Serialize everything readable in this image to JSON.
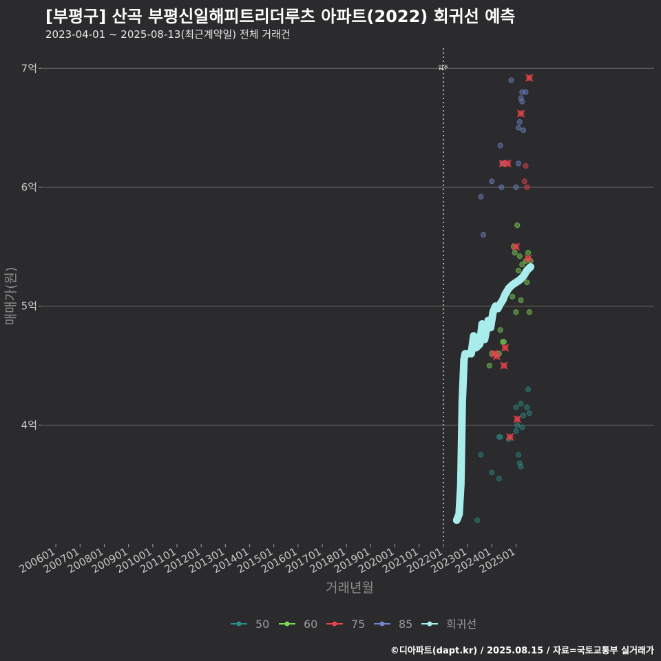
{
  "header": {
    "title": "[부평구] 산곡 부평신일해피트리더루츠 아파트(2022) 회귀선 예측",
    "subtitle": "2023-04-01 ~ 2025-08-13(최근계약일) 전체 거래건"
  },
  "footer": {
    "credit": "©디아파트(dapt.kr) / 2025.08.15 / 자료=국토교통부 실거래가"
  },
  "chart_data": {
    "type": "scatter",
    "title": "[부평구] 산곡 부평신일해피트리더루츠 아파트(2022) 회귀선 예측",
    "subtitle": "2023-04-01 ~ 2025-08-13(최근계약일) 전체 거래건",
    "xlabel": "거래년월",
    "ylabel": "매매가(원)",
    "xlim": [
      2005.4,
      2030.7
    ],
    "ylim": [
      3.0,
      7.1
    ],
    "x_ticks": [
      "200601",
      "200701",
      "200801",
      "200901",
      "201001",
      "201101",
      "201201",
      "201301",
      "201401",
      "201501",
      "201601",
      "201701",
      "201801",
      "201901",
      "202001",
      "202101",
      "202201",
      "202301",
      "202401",
      "202501"
    ],
    "y_ticks": [
      {
        "value": 4,
        "label": "4억"
      },
      {
        "value": 5,
        "label": "5억"
      },
      {
        "value": 6,
        "label": "6억"
      },
      {
        "value": 7,
        "label": "7억"
      }
    ],
    "grid": true,
    "annotations": [
      {
        "x": 2022.0,
        "label": "입주",
        "style": "dotted-vertical-line"
      }
    ],
    "legend": {
      "position": "bottom",
      "entries": [
        {
          "name": "50",
          "color": "#2a8f86"
        },
        {
          "name": "60",
          "color": "#7ed957"
        },
        {
          "name": "75",
          "color": "#e8434b"
        },
        {
          "name": "85",
          "color": "#6f86c9"
        },
        {
          "name": "회귀선",
          "color": "#a9ecec"
        }
      ]
    },
    "series": [
      {
        "name": "50",
        "color": "#2a8f86",
        "points": [
          [
            2023.4,
            3.2
          ],
          [
            2023.55,
            3.75
          ],
          [
            2024.0,
            3.6
          ],
          [
            2024.3,
            3.9
          ],
          [
            2024.35,
            3.9
          ],
          [
            2024.3,
            3.55
          ],
          [
            2024.7,
            3.88
          ],
          [
            2025.0,
            4.15
          ],
          [
            2025.05,
            4.0
          ],
          [
            2025.1,
            3.75
          ],
          [
            2025.15,
            3.68
          ],
          [
            2025.2,
            3.65
          ],
          [
            2025.2,
            4.18
          ],
          [
            2025.25,
            3.98
          ],
          [
            2025.3,
            4.08
          ],
          [
            2025.45,
            4.15
          ],
          [
            2025.5,
            4.3
          ],
          [
            2025.55,
            4.1
          ],
          [
            2025.0,
            3.95
          ]
        ]
      },
      {
        "name": "60",
        "color": "#7ed957",
        "points": [
          [
            2023.9,
            4.5
          ],
          [
            2024.0,
            4.6
          ],
          [
            2024.3,
            4.6
          ],
          [
            2024.35,
            4.8
          ],
          [
            2024.45,
            4.7
          ],
          [
            2024.5,
            4.7
          ],
          [
            2024.85,
            5.08
          ],
          [
            2024.9,
            5.5
          ],
          [
            2024.95,
            5.45
          ],
          [
            2025.0,
            4.95
          ],
          [
            2025.05,
            5.68
          ],
          [
            2025.1,
            5.3
          ],
          [
            2025.15,
            5.42
          ],
          [
            2025.2,
            5.05
          ],
          [
            2025.25,
            5.35
          ],
          [
            2025.4,
            5.38
          ],
          [
            2025.45,
            5.2
          ],
          [
            2025.5,
            5.45
          ],
          [
            2025.55,
            4.95
          ],
          [
            2025.6,
            5.38
          ]
        ]
      },
      {
        "name": "75",
        "color": "#e8434b",
        "points": [
          [
            2024.1,
            4.6
          ],
          [
            2024.2,
            4.58
          ],
          [
            2024.45,
            6.2
          ],
          [
            2024.65,
            6.2
          ],
          [
            2024.55,
            4.65
          ],
          [
            2024.5,
            4.5
          ],
          [
            2024.75,
            3.9
          ],
          [
            2025.0,
            5.5
          ],
          [
            2025.05,
            4.05
          ],
          [
            2025.2,
            6.62
          ],
          [
            2025.35,
            6.05
          ],
          [
            2025.4,
            6.18
          ],
          [
            2025.45,
            6.0
          ],
          [
            2025.5,
            5.4
          ],
          [
            2025.55,
            6.92
          ]
        ]
      },
      {
        "name": "85",
        "color": "#6f86c9",
        "points": [
          [
            2023.55,
            5.92
          ],
          [
            2023.65,
            5.6
          ],
          [
            2024.0,
            6.05
          ],
          [
            2024.35,
            6.35
          ],
          [
            2024.4,
            6.0
          ],
          [
            2024.45,
            6.2
          ],
          [
            2024.8,
            6.9
          ],
          [
            2025.0,
            6.0
          ],
          [
            2025.1,
            6.5
          ],
          [
            2025.2,
            6.75
          ],
          [
            2025.25,
            6.72
          ],
          [
            2025.15,
            6.55
          ],
          [
            2025.3,
            6.48
          ],
          [
            2025.25,
            6.8
          ],
          [
            2025.4,
            6.8
          ],
          [
            2025.1,
            6.2
          ]
        ]
      }
    ],
    "markers_x": [
      [
        2024.45,
        6.2
      ],
      [
        2024.65,
        6.2
      ],
      [
        2025.55,
        6.92
      ],
      [
        2025.2,
        6.62
      ],
      [
        2025.0,
        5.5
      ],
      [
        2025.5,
        5.4
      ],
      [
        2024.55,
        4.65
      ],
      [
        2024.5,
        4.5
      ],
      [
        2025.05,
        4.05
      ],
      [
        2024.75,
        3.9
      ],
      [
        2024.1,
        4.6
      ],
      [
        2024.2,
        4.58
      ]
    ],
    "regression": {
      "name": "회귀선",
      "points": [
        [
          2022.55,
          3.2
        ],
        [
          2022.65,
          3.25
        ],
        [
          2022.72,
          3.5
        ],
        [
          2022.78,
          4.2
        ],
        [
          2022.85,
          4.55
        ],
        [
          2022.9,
          4.6
        ],
        [
          2023.0,
          4.6
        ],
        [
          2023.15,
          4.6
        ],
        [
          2023.25,
          4.75
        ],
        [
          2023.35,
          4.65
        ],
        [
          2023.5,
          4.68
        ],
        [
          2023.6,
          4.85
        ],
        [
          2023.7,
          4.72
        ],
        [
          2023.85,
          4.88
        ],
        [
          2023.95,
          4.82
        ],
        [
          2024.05,
          4.95
        ],
        [
          2024.15,
          5.0
        ],
        [
          2024.25,
          4.98
        ],
        [
          2024.35,
          5.02
        ],
        [
          2024.45,
          5.05
        ],
        [
          2024.55,
          5.1
        ],
        [
          2024.7,
          5.15
        ],
        [
          2024.85,
          5.18
        ],
        [
          2025.0,
          5.2
        ],
        [
          2025.15,
          5.22
        ],
        [
          2025.3,
          5.25
        ],
        [
          2025.45,
          5.3
        ],
        [
          2025.6,
          5.33
        ]
      ]
    }
  }
}
